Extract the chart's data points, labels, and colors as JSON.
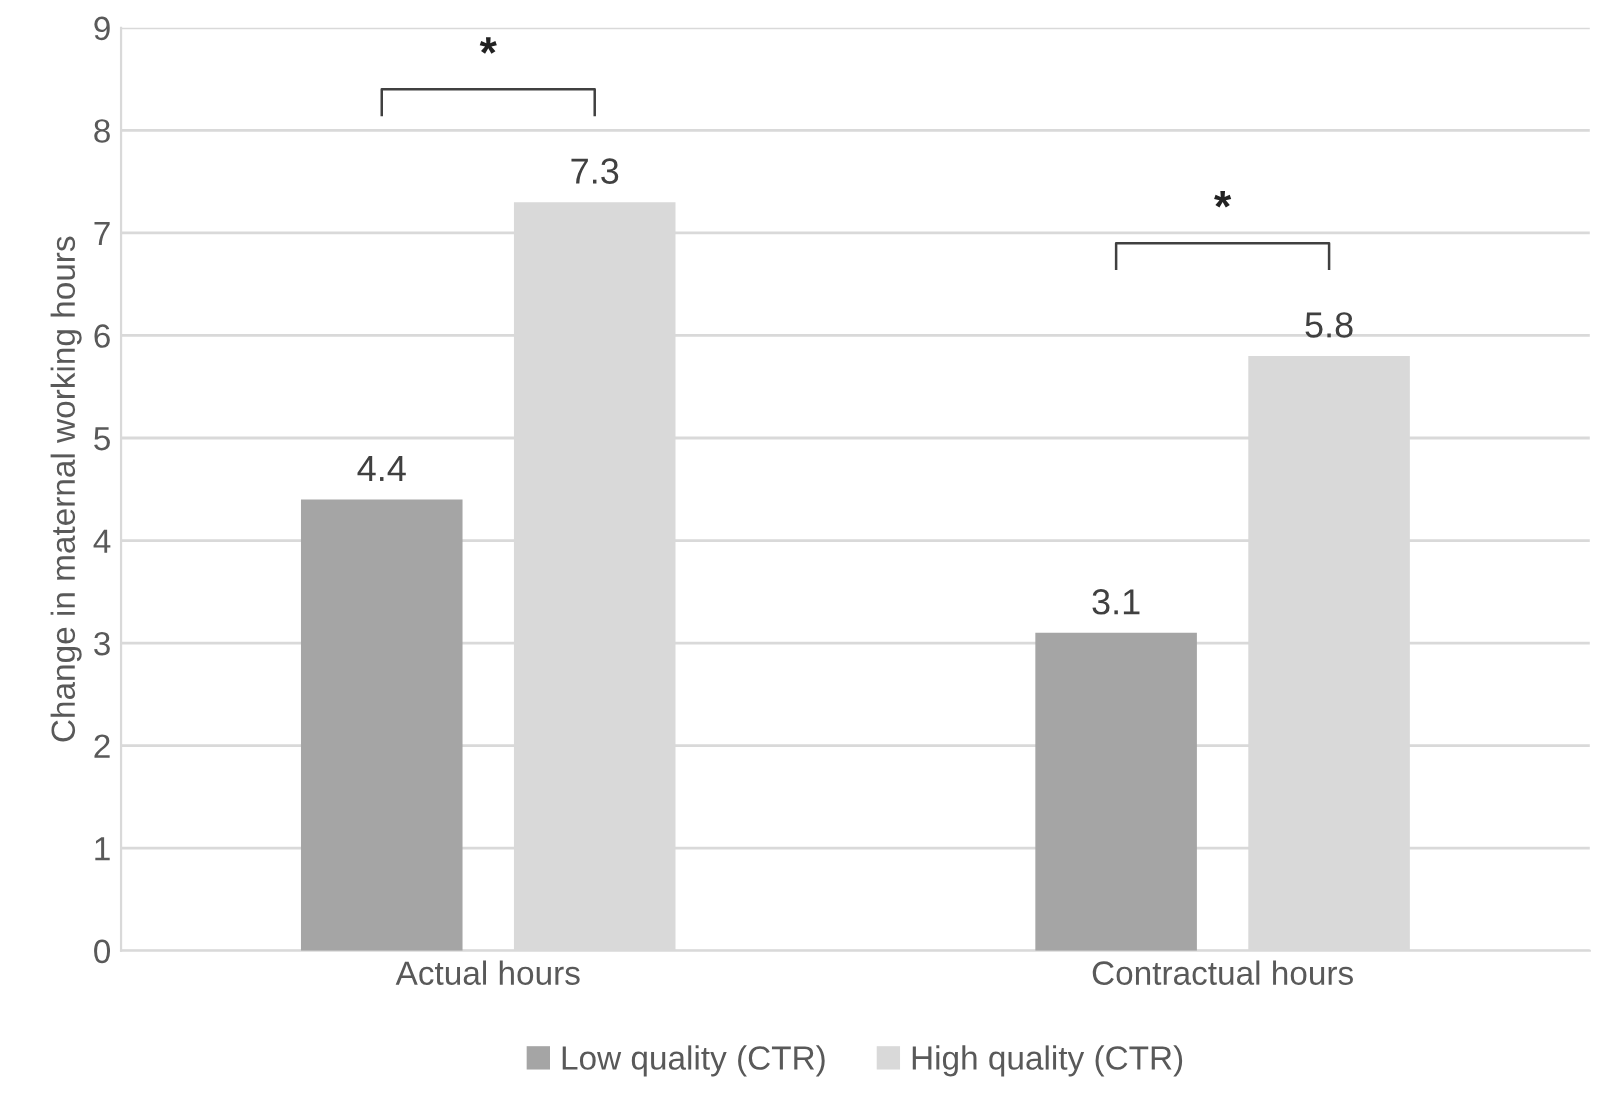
{
  "chart_data": {
    "type": "bar",
    "ylabel": "Change in maternal working hours",
    "categories": [
      "Actual hours",
      "Contractual hours"
    ],
    "series": [
      {
        "name": "Low quality (CTR)",
        "color": "#a5a5a5",
        "values": [
          4.4,
          3.1
        ]
      },
      {
        "name": "High quality (CTR)",
        "color": "#d9d9d9",
        "values": [
          7.3,
          5.8
        ]
      }
    ],
    "ylim": [
      0,
      9
    ],
    "yticks": [
      0,
      1,
      2,
      3,
      4,
      5,
      6,
      7,
      8,
      9
    ],
    "grid": "y",
    "legend": "bottom",
    "data_labels": true,
    "annotations": [
      "*",
      "*"
    ]
  }
}
